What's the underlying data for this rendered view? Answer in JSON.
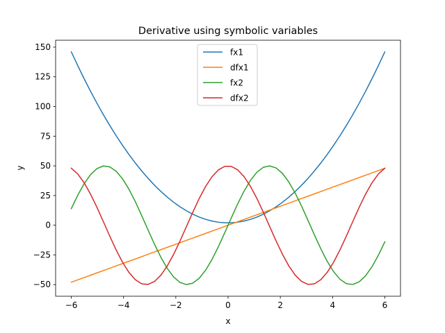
{
  "chart_data": {
    "type": "line",
    "title": "Derivative using symbolic variables",
    "xlabel": "x",
    "ylabel": "y",
    "xlim": [
      -6.6,
      6.6
    ],
    "ylim": [
      -59.8,
      155.8
    ],
    "xticks": [
      -6,
      -4,
      -2,
      0,
      2,
      4,
      6
    ],
    "xtick_labels": [
      "−6",
      "−4",
      "−2",
      "0",
      "2",
      "4",
      "6"
    ],
    "yticks": [
      -50,
      -25,
      0,
      25,
      50,
      75,
      100,
      125,
      150
    ],
    "ytick_labels": [
      "−50",
      "−25",
      "0",
      "25",
      "50",
      "75",
      "100",
      "125",
      "150"
    ],
    "grid": false,
    "legend_position": "top-center",
    "series": [
      {
        "name": "fx1",
        "color": "#1f77b4",
        "expression": "4*x**2 + 2",
        "x": [
          -6,
          -5,
          -4,
          -3,
          -2,
          -1,
          0,
          1,
          2,
          3,
          4,
          5,
          6
        ],
        "values": [
          146,
          102,
          66,
          38,
          18,
          6,
          2,
          6,
          18,
          38,
          66,
          102,
          146
        ]
      },
      {
        "name": "dfx1",
        "color": "#ff7f0e",
        "expression": "8*x",
        "x": [
          -6,
          6
        ],
        "values": [
          -48,
          48
        ]
      },
      {
        "name": "fx2",
        "color": "#2ca02c",
        "expression": "50*sin(x)",
        "x": [
          -6,
          -5,
          -4.712,
          -4,
          -3,
          -2,
          -1.571,
          -1,
          0,
          1,
          1.571,
          2,
          3,
          4,
          4.712,
          5,
          6
        ],
        "values": [
          14,
          48,
          50,
          38,
          -7,
          -45,
          -50,
          -42,
          0,
          42,
          50,
          45,
          7,
          -38,
          -50,
          -48,
          -14
        ]
      },
      {
        "name": "dfx2",
        "color": "#d62728",
        "expression": "50*cos(x)",
        "x": [
          -6,
          -5,
          -4,
          -3.142,
          -3,
          -2,
          -1,
          0,
          1,
          2,
          3,
          3.142,
          4,
          5,
          6
        ],
        "values": [
          48,
          14,
          -33,
          -50,
          -49,
          -21,
          27,
          50,
          27,
          -21,
          -49,
          -50,
          -33,
          14,
          48
        ]
      }
    ]
  }
}
